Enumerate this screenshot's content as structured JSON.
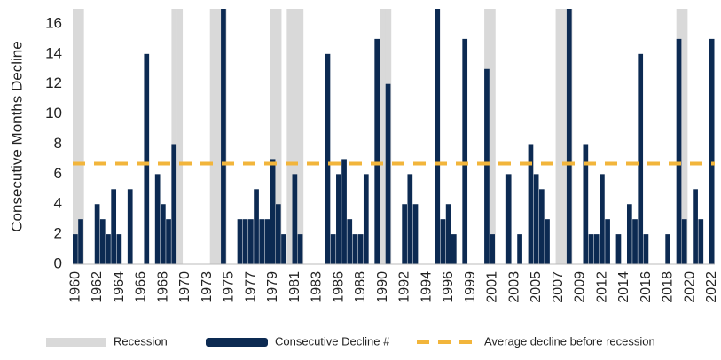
{
  "chart_data": {
    "type": "bar",
    "ylabel": "Consecutive Months Decline",
    "ylim": [
      0,
      17
    ],
    "yticks": [
      0,
      2,
      4,
      6,
      8,
      10,
      12,
      14,
      16
    ],
    "categories": [
      "1960",
      null,
      null,
      null,
      "1962",
      null,
      null,
      null,
      "1964",
      null,
      null,
      null,
      "1966",
      null,
      null,
      null,
      "1968",
      null,
      null,
      null,
      "1970",
      null,
      null,
      null,
      "1973",
      null,
      null,
      null,
      "1975",
      null,
      null,
      null,
      "1977",
      null,
      null,
      null,
      "1979",
      null,
      null,
      null,
      "1981",
      null,
      null,
      null,
      "1983",
      null,
      null,
      null,
      "1986",
      null,
      null,
      null,
      "1988",
      null,
      null,
      null,
      "1990",
      null,
      null,
      null,
      "1992",
      null,
      null,
      null,
      "1994",
      null,
      null,
      null,
      "1996",
      null,
      null,
      null,
      "1999",
      null,
      null,
      null,
      "2001",
      null,
      null,
      null,
      "2003",
      null,
      null,
      null,
      "2005",
      null,
      null,
      null,
      "2007",
      null,
      null,
      null,
      "2009",
      null,
      null,
      null,
      "2012",
      null,
      null,
      null,
      "2014",
      null,
      null,
      null,
      "2016",
      null,
      null,
      null,
      "2018",
      null,
      null,
      null,
      "2020",
      null,
      null,
      null,
      "2022"
    ],
    "series": [
      {
        "name": "Consecutive Decline #",
        "color": "#0c2a52",
        "values": [
          2,
          3,
          null,
          null,
          4,
          3,
          2,
          5,
          2,
          null,
          5,
          null,
          null,
          14,
          null,
          6,
          4,
          3,
          8,
          null,
          null,
          null,
          null,
          null,
          null,
          null,
          null,
          17,
          null,
          null,
          3,
          3,
          3,
          5,
          3,
          3,
          7,
          4,
          2,
          null,
          6,
          2,
          null,
          null,
          null,
          null,
          14,
          2,
          6,
          7,
          3,
          2,
          2,
          6,
          null,
          15,
          null,
          12,
          null,
          null,
          4,
          6,
          4,
          null,
          null,
          null,
          17,
          3,
          4,
          2,
          null,
          15,
          null,
          null,
          null,
          13,
          2,
          null,
          null,
          6,
          null,
          2,
          null,
          8,
          6,
          5,
          3,
          null,
          null,
          null,
          17,
          null,
          null,
          8,
          2,
          2,
          6,
          3,
          null,
          2,
          null,
          4,
          3,
          14,
          2,
          null,
          null,
          null,
          2,
          null,
          15,
          3,
          null,
          5,
          3,
          null,
          15
        ]
      }
    ],
    "recession": {
      "name": "Recession",
      "color": "#d9d9d9",
      "flags": [
        true,
        true,
        false,
        false,
        false,
        false,
        false,
        false,
        false,
        false,
        false,
        false,
        false,
        false,
        false,
        false,
        false,
        false,
        true,
        true,
        false,
        false,
        false,
        false,
        false,
        true,
        true,
        true,
        false,
        false,
        false,
        false,
        false,
        false,
        false,
        false,
        true,
        true,
        false,
        true,
        true,
        true,
        false,
        false,
        false,
        false,
        false,
        false,
        false,
        false,
        false,
        false,
        false,
        false,
        false,
        false,
        true,
        true,
        false,
        false,
        false,
        false,
        false,
        false,
        false,
        false,
        false,
        false,
        false,
        false,
        false,
        false,
        false,
        false,
        false,
        true,
        true,
        false,
        false,
        false,
        false,
        false,
        false,
        false,
        false,
        false,
        false,
        false,
        true,
        true,
        true,
        false,
        false,
        false,
        false,
        false,
        false,
        false,
        false,
        false,
        false,
        false,
        false,
        false,
        false,
        false,
        false,
        false,
        false,
        false,
        true,
        true,
        false,
        false,
        false,
        false,
        false
      ]
    },
    "reference_line": {
      "name": "Average decline before recession",
      "color": "#f2b53b",
      "value": 6.7
    }
  }
}
